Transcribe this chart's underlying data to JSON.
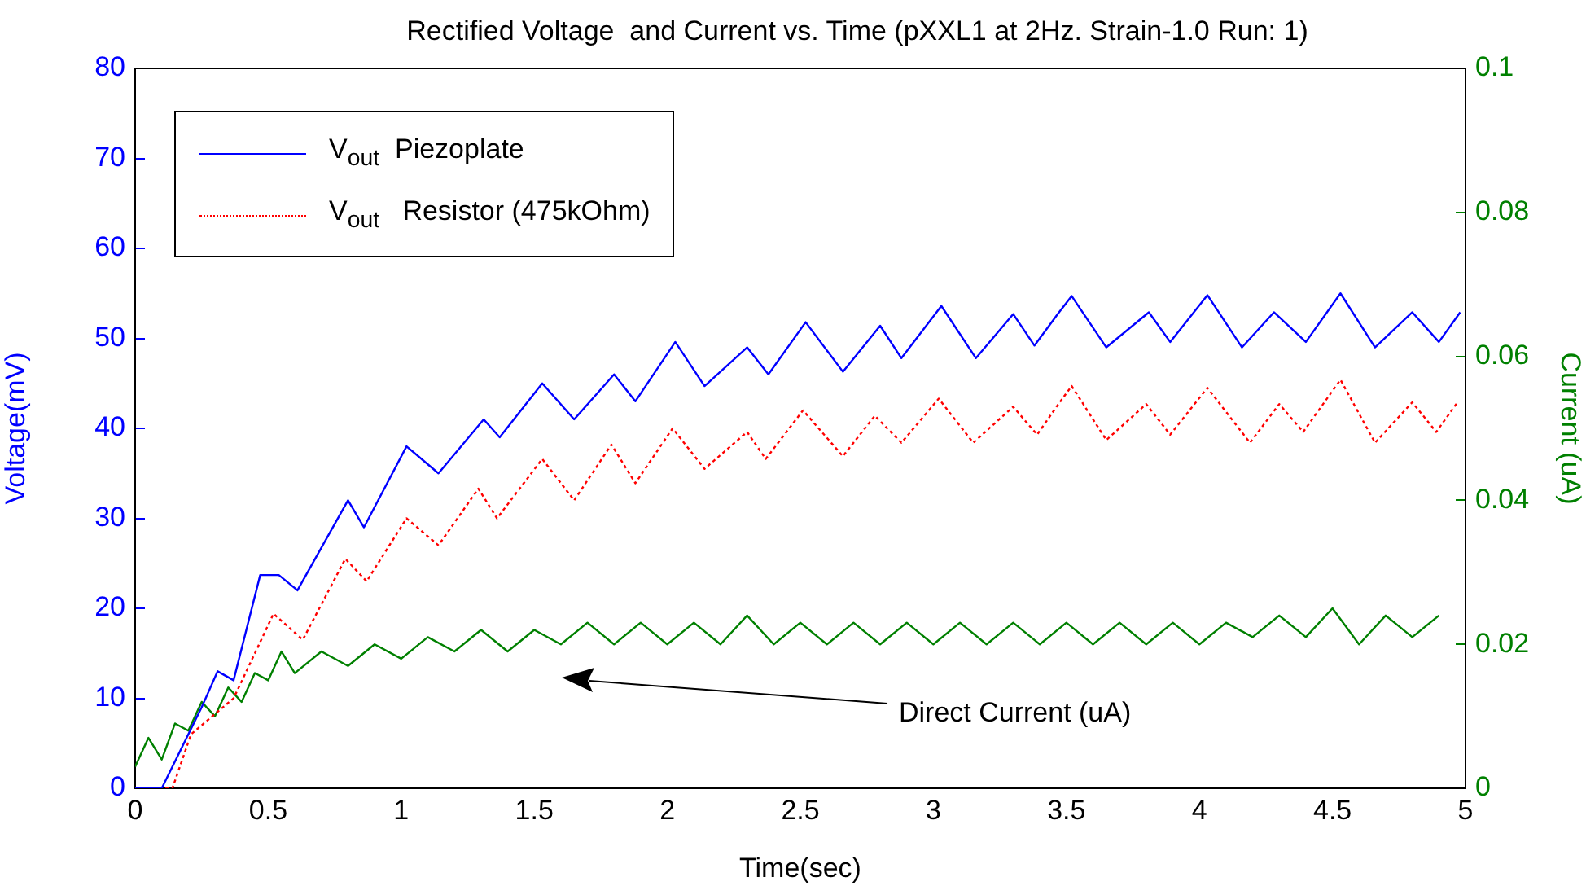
{
  "chart_data": {
    "type": "line",
    "title": "Rectified Voltage  and Current vs. Time (pXXL1 at 2Hz. Strain-1.0 Run: 1)",
    "xlabel": "Time(sec)",
    "ylabel": "Voltage(mV)",
    "y2label": "Current (uA)",
    "xlim": [
      0,
      5
    ],
    "xticks": [
      0,
      0.5,
      1,
      1.5,
      2,
      2.5,
      3,
      3.5,
      4,
      4.5,
      5
    ],
    "ylim": [
      0,
      80
    ],
    "yticks": [
      0,
      10,
      20,
      30,
      40,
      50,
      60,
      70,
      80
    ],
    "y2lim": [
      0,
      0.1
    ],
    "y2ticks": [
      0,
      0.02,
      0.04,
      0.06,
      0.08,
      0.1
    ],
    "grid": false,
    "legend": "top left",
    "marker": "none",
    "annotations": [
      "Direct Current (uA)"
    ],
    "series": [
      {
        "name": "V$_{out}$  Piezoplate",
        "color": "#0000ff",
        "line_style": "solid",
        "x": [
          0,
          0.1,
          0.25,
          0.31,
          0.37,
          0.47,
          0.54,
          0.61,
          0.8,
          0.86,
          1.02,
          1.14,
          1.31,
          1.37,
          1.53,
          1.65,
          1.8,
          1.88,
          2.03,
          2.14,
          2.3,
          2.38,
          2.52,
          2.66,
          2.8,
          2.88,
          3.03,
          3.16,
          3.3,
          3.38,
          3.47,
          3.52,
          3.65,
          3.81,
          3.89,
          4.03,
          4.16,
          4.28,
          4.4,
          4.53,
          4.66,
          4.8,
          4.9,
          4.98
        ],
        "values": [
          0,
          0,
          9,
          13,
          12,
          23.7,
          23.7,
          22,
          32,
          29,
          38,
          35,
          41,
          39,
          45,
          41,
          46,
          43,
          49.6,
          44.7,
          49,
          46,
          51.8,
          46.3,
          51.4,
          47.8,
          53.6,
          47.8,
          52.7,
          49.2,
          52.8,
          54.7,
          49,
          52.9,
          49.6,
          54.8,
          49,
          52.9,
          49.6,
          55,
          49,
          52.9,
          49.6,
          52.9
        ]
      },
      {
        "name": "V$_{out}$   Resistor (475kOhm)",
        "color": "#ff0000",
        "line_style": "dotted",
        "x": [
          0.04,
          0.14,
          0.21,
          0.37,
          0.45,
          0.52,
          0.63,
          0.79,
          0.87,
          1.02,
          1.14,
          1.29,
          1.36,
          1.53,
          1.65,
          1.79,
          1.88,
          2.02,
          2.14,
          2.3,
          2.37,
          2.51,
          2.66,
          2.78,
          2.88,
          3.02,
          3.15,
          3.3,
          3.39,
          3.47,
          3.52,
          3.65,
          3.8,
          3.89,
          4.03,
          4.19,
          4.3,
          4.39,
          4.53,
          4.66,
          4.8,
          4.89,
          4.97
        ],
        "values": [
          0,
          0,
          6,
          10,
          15,
          19.4,
          16.5,
          25.5,
          23,
          30,
          27,
          33.3,
          30,
          36.6,
          32,
          38.2,
          33.9,
          40,
          35.5,
          39.6,
          36.6,
          42,
          36.9,
          41.4,
          38.4,
          43.3,
          38.4,
          42.4,
          39.3,
          42.7,
          44.7,
          38.7,
          42.7,
          39.3,
          44.5,
          38.4,
          42.7,
          39.6,
          45.4,
          38.4,
          42.9,
          39.6,
          42.9
        ]
      },
      {
        "color": "#008000",
        "line_style": "solid",
        "axis": "y2",
        "x": [
          0,
          0.05,
          0.1,
          0.15,
          0.2,
          0.25,
          0.3,
          0.35,
          0.4,
          0.45,
          0.5,
          0.55,
          0.6,
          0.7,
          0.8,
          0.9,
          1.0,
          1.1,
          1.2,
          1.3,
          1.4,
          1.5,
          1.6,
          1.7,
          1.8,
          1.9,
          2.0,
          2.1,
          2.2,
          2.3,
          2.4,
          2.5,
          2.6,
          2.7,
          2.8,
          2.9,
          3.0,
          3.1,
          3.2,
          3.3,
          3.4,
          3.5,
          3.6,
          3.7,
          3.8,
          3.9,
          4.0,
          4.1,
          4.2,
          4.3,
          4.4,
          4.5,
          4.6,
          4.7,
          4.8,
          4.9
        ],
        "values": [
          0.003,
          0.007,
          0.004,
          0.009,
          0.008,
          0.012,
          0.01,
          0.014,
          0.012,
          0.016,
          0.015,
          0.019,
          0.016,
          0.019,
          0.017,
          0.02,
          0.018,
          0.021,
          0.019,
          0.022,
          0.019,
          0.022,
          0.02,
          0.023,
          0.02,
          0.023,
          0.02,
          0.023,
          0.02,
          0.024,
          0.02,
          0.023,
          0.02,
          0.023,
          0.02,
          0.023,
          0.02,
          0.023,
          0.02,
          0.023,
          0.02,
          0.023,
          0.02,
          0.023,
          0.02,
          0.023,
          0.02,
          0.023,
          0.021,
          0.024,
          0.021,
          0.025,
          0.02,
          0.024,
          0.021,
          0.024
        ]
      }
    ]
  }
}
